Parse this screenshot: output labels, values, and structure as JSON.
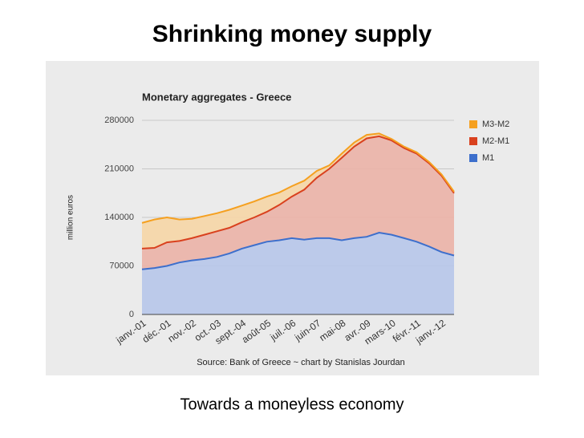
{
  "slide_title": "Shrinking money supply",
  "caption": "Towards a moneyless economy",
  "chart_data": {
    "type": "stacked_area",
    "title": "Monetary aggregates - Greece",
    "y_label": "million euros",
    "source": "Source: Bank of Greece ~ chart by Stanislas Jourdan",
    "categories": [
      "janv.-01",
      null,
      "déc.-01",
      null,
      "nov.-02",
      null,
      "oct.-03",
      null,
      "sept.-04",
      null,
      "août-05",
      null,
      "juil.-06",
      null,
      "juin-07",
      null,
      "mai-08",
      null,
      "avr.-09",
      null,
      "mars-10",
      null,
      "févr.-11",
      null,
      "janv.-12",
      null
    ],
    "series": [
      {
        "name": "M1",
        "color": "#3d6fcc",
        "fill": "#b7c6ea",
        "values": [
          65000,
          67000,
          70000,
          75000,
          78000,
          80000,
          83000,
          88000,
          95000,
          100000,
          105000,
          107000,
          110000,
          108000,
          110000,
          110000,
          107000,
          110000,
          112000,
          118000,
          115000,
          110000,
          105000,
          98000,
          90000,
          85000
        ]
      },
      {
        "name": "M2-M1",
        "color": "#d9411e",
        "fill": "#ebb3a7",
        "values": [
          30000,
          29000,
          34000,
          31000,
          32000,
          35000,
          37000,
          37000,
          38000,
          40000,
          43000,
          51000,
          60000,
          72000,
          87000,
          100000,
          119000,
          132000,
          142000,
          139000,
          136000,
          130000,
          127000,
          120000,
          110000,
          90000
        ]
      },
      {
        "name": "M3-M2",
        "color": "#f5a020",
        "fill": "#f6d6a6",
        "values": [
          37000,
          41000,
          36000,
          31000,
          28000,
          27000,
          26000,
          26000,
          24000,
          23000,
          22000,
          18000,
          15000,
          13000,
          10000,
          5000,
          6000,
          6000,
          5000,
          4000,
          2000,
          2000,
          2000,
          2000,
          2000,
          2000
        ]
      }
    ],
    "ylim": [
      0,
      280000
    ],
    "yticks": [
      0,
      70000,
      140000,
      210000,
      280000
    ],
    "grid": true,
    "legend": "right"
  }
}
